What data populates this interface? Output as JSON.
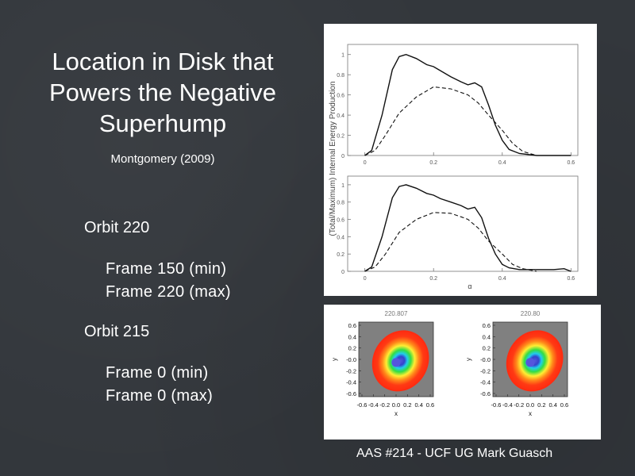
{
  "slide": {
    "title_lines": [
      "Location in Disk that",
      "Powers the Negative",
      "Superhump"
    ],
    "citation": "Montgomery (2009)",
    "bullets": [
      {
        "label": "Orbit 220",
        "subs": [
          "Frame 150 (min)",
          "Frame 220 (max)"
        ]
      },
      {
        "label": "Orbit 215",
        "subs": [
          "Frame 0 (min)",
          "Frame 0 (max)"
        ]
      }
    ],
    "credit": "AAS #214 - UCF UG Mark Guasch"
  },
  "figure_top": {
    "ylabel": "(Total/Maximum) Internal Energy Production",
    "xlabel": "α",
    "yticks": [
      "0",
      "0.2",
      "0.4",
      "0.6",
      "0.8",
      "1"
    ],
    "xticks": [
      "0",
      "0.2",
      "0.4",
      "0.6"
    ]
  },
  "figure_bottom": {
    "panel_titles": [
      "220.807",
      "220.80"
    ],
    "ylabel": "y",
    "xlabel": "x",
    "ticks": [
      "0.6",
      "0.4",
      "0.2",
      "-0.0",
      "-0.2",
      "-0.4",
      "-0.6"
    ],
    "xticks": [
      "-0.6",
      "-0.4",
      "-0.2",
      "0.0",
      "0.2",
      "0.4",
      "0.6"
    ],
    "colors": {
      "background": "#808080",
      "outer": "#ff2a10",
      "orange": "#ff8a1a",
      "yellow": "#ffee33",
      "green": "#33dd44",
      "cyan": "#22ccee",
      "blue": "#3344cc",
      "core": "#5555dd"
    }
  },
  "chart_data": [
    {
      "type": "line",
      "panel": "top",
      "xlabel": "α",
      "ylabel": "(Total/Maximum) Internal Energy Production",
      "xlim": [
        -0.05,
        0.62
      ],
      "ylim": [
        0,
        1.1
      ],
      "series": [
        {
          "style": "solid",
          "x": [
            0.0,
            0.02,
            0.05,
            0.08,
            0.1,
            0.12,
            0.15,
            0.18,
            0.2,
            0.22,
            0.25,
            0.28,
            0.3,
            0.32,
            0.34,
            0.36,
            0.38,
            0.4,
            0.42,
            0.45,
            0.5,
            0.6
          ],
          "y": [
            0.0,
            0.05,
            0.4,
            0.85,
            0.98,
            1.0,
            0.96,
            0.9,
            0.88,
            0.84,
            0.78,
            0.73,
            0.7,
            0.72,
            0.68,
            0.5,
            0.3,
            0.15,
            0.06,
            0.02,
            0.0,
            0.0
          ]
        },
        {
          "style": "dashed",
          "x": [
            0.0,
            0.03,
            0.06,
            0.1,
            0.15,
            0.2,
            0.25,
            0.3,
            0.33,
            0.36,
            0.4,
            0.43,
            0.46,
            0.5
          ],
          "y": [
            0.0,
            0.05,
            0.2,
            0.42,
            0.58,
            0.68,
            0.66,
            0.6,
            0.52,
            0.4,
            0.25,
            0.12,
            0.04,
            0.0
          ]
        }
      ]
    },
    {
      "type": "line",
      "panel": "bottom",
      "xlabel": "α",
      "ylabel": "(Total/Maximum) Internal Energy Production",
      "xlim": [
        -0.05,
        0.62
      ],
      "ylim": [
        0,
        1.1
      ],
      "series": [
        {
          "style": "solid",
          "x": [
            0.0,
            0.02,
            0.05,
            0.08,
            0.1,
            0.12,
            0.15,
            0.18,
            0.2,
            0.22,
            0.25,
            0.28,
            0.3,
            0.32,
            0.34,
            0.36,
            0.38,
            0.4,
            0.42,
            0.45,
            0.5,
            0.55,
            0.58,
            0.6
          ],
          "y": [
            0.0,
            0.05,
            0.4,
            0.85,
            0.98,
            1.0,
            0.96,
            0.9,
            0.88,
            0.84,
            0.8,
            0.76,
            0.72,
            0.74,
            0.62,
            0.38,
            0.2,
            0.08,
            0.04,
            0.02,
            0.02,
            0.02,
            0.03,
            0.0
          ]
        },
        {
          "style": "dashed",
          "x": [
            0.0,
            0.03,
            0.06,
            0.1,
            0.15,
            0.2,
            0.25,
            0.28,
            0.3,
            0.33,
            0.36,
            0.4,
            0.43,
            0.46,
            0.5
          ],
          "y": [
            0.0,
            0.05,
            0.2,
            0.45,
            0.6,
            0.68,
            0.67,
            0.63,
            0.6,
            0.5,
            0.35,
            0.2,
            0.08,
            0.03,
            0.0
          ]
        }
      ]
    }
  ]
}
